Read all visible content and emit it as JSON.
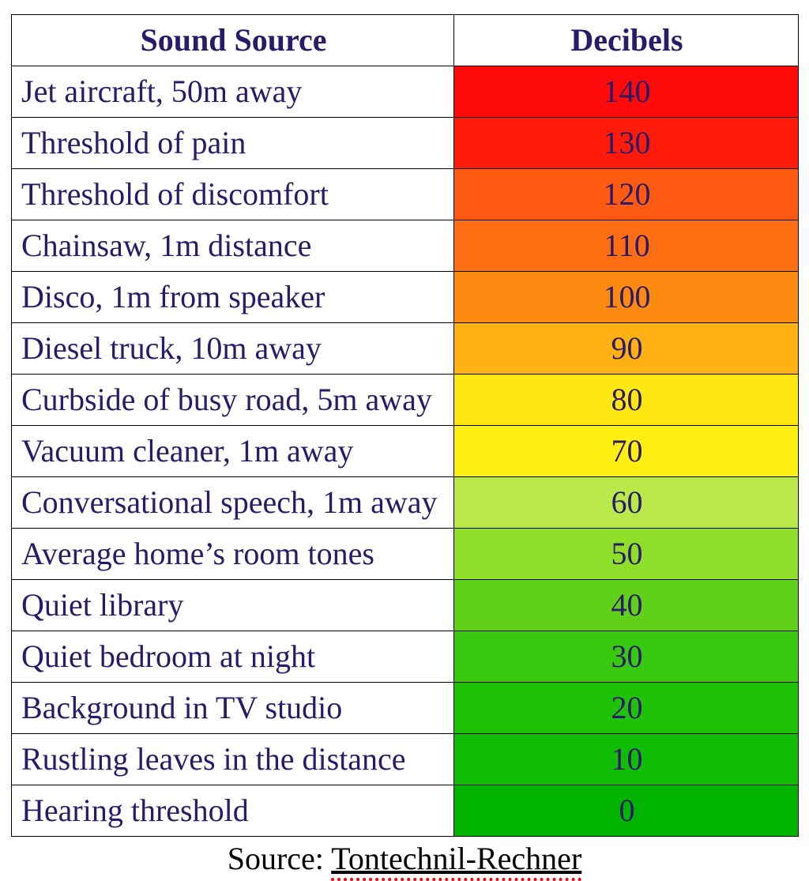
{
  "table": {
    "header_text_color": "#2a1a6a",
    "source_text_color": "#2a1a6a",
    "db_text_color": "#2a1a6a",
    "border_color": "#000000",
    "columns": [
      {
        "label": "Sound Source"
      },
      {
        "label": "Decibels"
      }
    ],
    "rows": [
      {
        "source": "Jet aircraft, 50m away",
        "db": "140",
        "bg": "#ff0a0a"
      },
      {
        "source": "Threshold of pain",
        "db": "130",
        "bg": "#ff1a0a"
      },
      {
        "source": "Threshold of discomfort",
        "db": "120",
        "bg": "#ff5a12"
      },
      {
        "source": "Chainsaw, 1m distance",
        "db": "110",
        "bg": "#ff6e12"
      },
      {
        "source": "Disco, 1m from speaker",
        "db": "100",
        "bg": "#ff8a12"
      },
      {
        "source": "Diesel truck, 10m away",
        "db": "90",
        "bg": "#ffb012"
      },
      {
        "source": "Curbside of busy road, 5m away",
        "db": "80",
        "bg": "#ffe812"
      },
      {
        "source": "Vacuum cleaner, 1m away",
        "db": "70",
        "bg": "#fff012"
      },
      {
        "source": "Conversational speech, 1m away",
        "db": "60",
        "bg": "#b8e84a"
      },
      {
        "source": "Average home’s room tones",
        "db": "50",
        "bg": "#8fdf2a"
      },
      {
        "source": "Quiet library",
        "db": "40",
        "bg": "#60d018"
      },
      {
        "source": "Quiet bedroom at night",
        "db": "30",
        "bg": "#38c810"
      },
      {
        "source": "Background in TV studio",
        "db": "20",
        "bg": "#20c208"
      },
      {
        "source": "Rustling leaves in the distance",
        "db": "10",
        "bg": "#10bc04"
      },
      {
        "source": "Hearing threshold",
        "db": "0",
        "bg": "#00b400"
      }
    ]
  },
  "footer": {
    "prefix": "Source: ",
    "name": "Tontechnil-Rechner"
  }
}
